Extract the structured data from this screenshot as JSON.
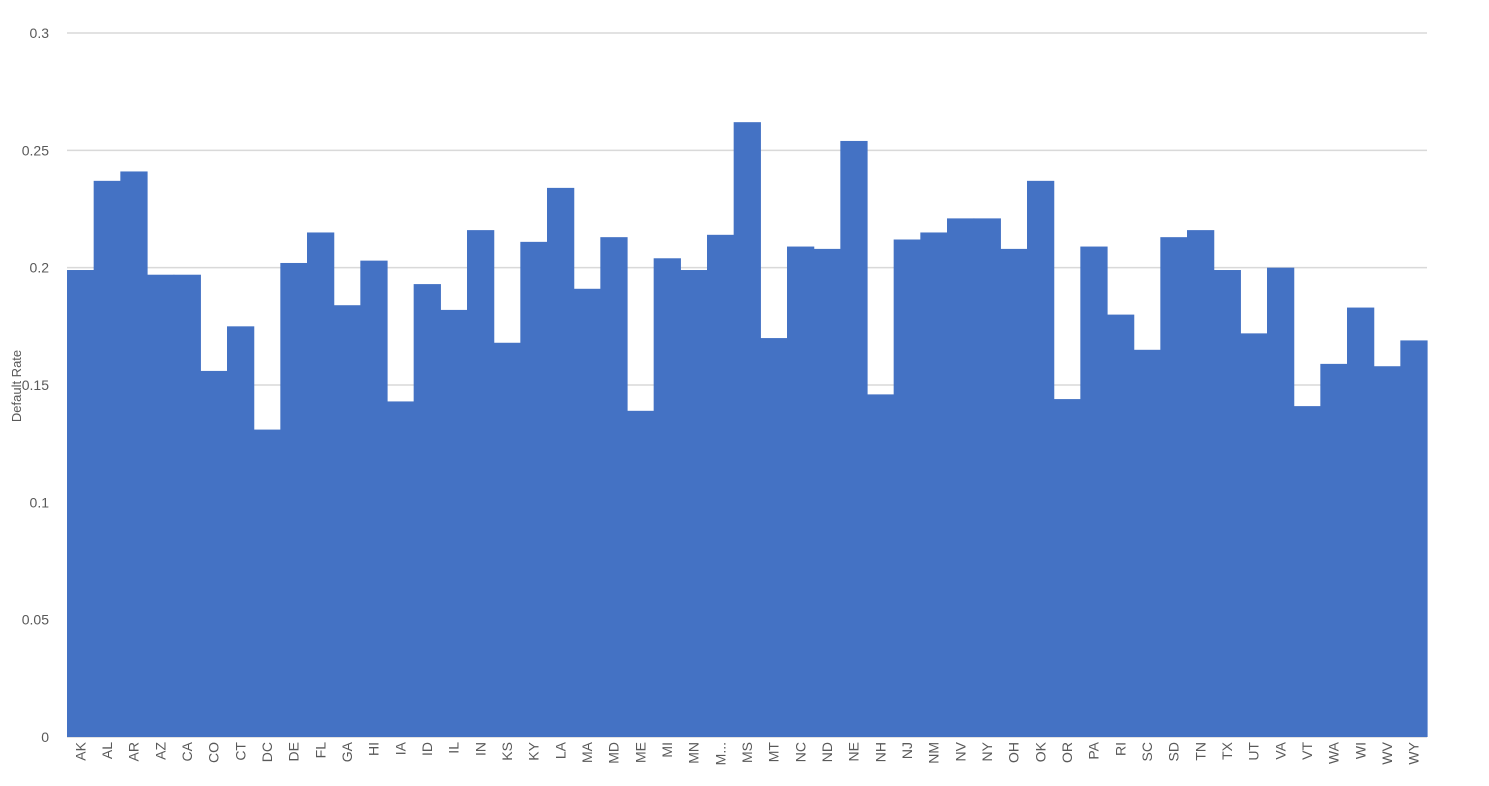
{
  "chart_data": {
    "type": "bar",
    "title": "",
    "xlabel": "",
    "ylabel": "Default Rate",
    "ylim": [
      0,
      0.3
    ],
    "yticks": [
      "0",
      "0.05",
      "0.1",
      "0.15",
      "0.2",
      "0.25",
      "0.3"
    ],
    "grid": true,
    "legend": "none",
    "bar_color": "#4472C4",
    "grid_color": "#D9D9D9",
    "categories": [
      "AK",
      "AL",
      "AR",
      "AZ",
      "CA",
      "CO",
      "CT",
      "DC",
      "DE",
      "FL",
      "GA",
      "HI",
      "IA",
      "ID",
      "IL",
      "IN",
      "KS",
      "KY",
      "LA",
      "MA",
      "MD",
      "ME",
      "MI",
      "MN",
      "M...",
      "MS",
      "MT",
      "NC",
      "ND",
      "NE",
      "NH",
      "NJ",
      "NM",
      "NV",
      "NY",
      "OH",
      "OK",
      "OR",
      "PA",
      "RI",
      "SC",
      "SD",
      "TN",
      "TX",
      "UT",
      "VA",
      "VT",
      "WA",
      "WI",
      "WV",
      "WY"
    ],
    "values": [
      0.199,
      0.237,
      0.241,
      0.197,
      0.197,
      0.156,
      0.175,
      0.131,
      0.202,
      0.215,
      0.184,
      0.203,
      0.143,
      0.193,
      0.182,
      0.216,
      0.168,
      0.211,
      0.234,
      0.191,
      0.213,
      0.139,
      0.204,
      0.199,
      0.214,
      0.262,
      0.17,
      0.209,
      0.208,
      0.254,
      0.146,
      0.212,
      0.215,
      0.221,
      0.221,
      0.208,
      0.237,
      0.144,
      0.209,
      0.18,
      0.165,
      0.213,
      0.216,
      0.199,
      0.172,
      0.2,
      0.141,
      0.159,
      0.183,
      0.158,
      0.169
    ]
  }
}
